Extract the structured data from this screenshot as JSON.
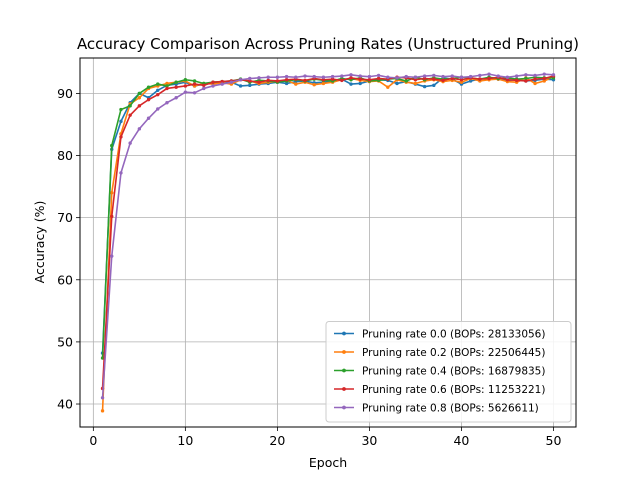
{
  "chart_data": {
    "type": "line",
    "title": "Accuracy Comparison Across Pruning Rates (Unstructured Pruning)",
    "xlabel": "Epoch",
    "ylabel": "Accuracy (%)",
    "xlim": [
      -1.45,
      52.45
    ],
    "ylim": [
      36.3,
      95.7
    ],
    "xticks": [
      0,
      10,
      20,
      30,
      40,
      50
    ],
    "yticks": [
      40,
      50,
      60,
      70,
      80,
      90
    ],
    "grid": true,
    "legend_position": "lower-right",
    "x": [
      1,
      2,
      3,
      4,
      5,
      6,
      7,
      8,
      9,
      10,
      11,
      12,
      13,
      14,
      15,
      16,
      17,
      18,
      19,
      20,
      21,
      22,
      23,
      24,
      25,
      26,
      27,
      28,
      29,
      30,
      31,
      32,
      33,
      34,
      35,
      36,
      37,
      38,
      39,
      40,
      41,
      42,
      43,
      44,
      45,
      46,
      47,
      48,
      49,
      50
    ],
    "series": [
      {
        "name": "Pruning rate 0.0 (BOPs: 28133056)",
        "color": "#1f77b4",
        "values": [
          48.2,
          81.0,
          85.5,
          88.5,
          90.0,
          89.3,
          90.5,
          91.3,
          91.5,
          91.8,
          91.2,
          91.5,
          91.7,
          91.6,
          91.8,
          91.2,
          91.3,
          91.5,
          91.6,
          91.8,
          91.6,
          91.9,
          92.0,
          91.7,
          91.8,
          92.0,
          92.3,
          91.5,
          91.6,
          92.0,
          92.2,
          92.1,
          91.6,
          91.9,
          91.5,
          91.1,
          91.3,
          92.5,
          92.3,
          91.5,
          92.0,
          92.3,
          92.4,
          92.3,
          92.1,
          92.2,
          92.0,
          92.1,
          92.3,
          92.2
        ]
      },
      {
        "name": "Pruning rate 0.2 (BOPs: 22506445)",
        "color": "#ff7f0e",
        "values": [
          38.9,
          74.0,
          83.5,
          88.3,
          89.3,
          90.8,
          91.2,
          91.6,
          91.8,
          92.0,
          91.2,
          91.6,
          91.5,
          91.7,
          91.5,
          92.2,
          92.0,
          91.6,
          91.8,
          91.9,
          92.1,
          91.5,
          91.8,
          91.4,
          91.6,
          91.8,
          92.2,
          92.4,
          92.1,
          91.9,
          92.0,
          91.0,
          92.2,
          91.8,
          91.6,
          92.0,
          92.2,
          91.9,
          92.1,
          91.8,
          92.4,
          92.0,
          92.2,
          92.3,
          91.9,
          91.8,
          92.5,
          91.6,
          92.0,
          92.7
        ]
      },
      {
        "name": "Pruning rate 0.4 (BOPs: 16879835)",
        "color": "#2ca02c",
        "values": [
          47.4,
          81.6,
          87.4,
          88.0,
          90.0,
          91.0,
          91.5,
          91.2,
          91.8,
          92.2,
          92.0,
          91.6,
          91.8,
          91.9,
          92.0,
          92.3,
          91.8,
          92.1,
          92.0,
          91.8,
          92.0,
          92.2,
          92.0,
          92.3,
          92.1,
          92.0,
          92.4,
          92.2,
          92.5,
          92.0,
          92.1,
          92.3,
          92.4,
          92.0,
          92.6,
          92.2,
          92.5,
          92.3,
          92.4,
          92.6,
          92.5,
          92.3,
          92.6,
          92.4,
          92.5,
          92.3,
          92.4,
          92.6,
          92.5,
          92.5
        ]
      },
      {
        "name": "Pruning rate 0.6 (BOPs: 11253221)",
        "color": "#d62728",
        "values": [
          42.5,
          70.2,
          83.0,
          86.5,
          88.0,
          89.0,
          89.8,
          90.8,
          91.0,
          91.2,
          91.5,
          91.3,
          91.8,
          91.9,
          92.0,
          92.2,
          92.0,
          91.8,
          92.1,
          92.0,
          92.2,
          92.3,
          92.1,
          92.4,
          92.2,
          92.3,
          92.1,
          92.5,
          92.3,
          92.2,
          92.4,
          92.3,
          92.6,
          92.5,
          92.2,
          92.4,
          92.3,
          92.1,
          92.4,
          92.2,
          92.5,
          92.3,
          92.4,
          92.6,
          92.2,
          92.1,
          92.0,
          92.3,
          92.4,
          92.8
        ]
      },
      {
        "name": "Pruning rate 0.8 (BOPs: 5626611)",
        "color": "#9467bd",
        "values": [
          41.0,
          63.8,
          77.2,
          82.0,
          84.3,
          86.0,
          87.5,
          88.5,
          89.3,
          90.2,
          90.1,
          90.8,
          91.2,
          91.5,
          91.8,
          92.2,
          92.4,
          92.5,
          92.6,
          92.6,
          92.7,
          92.6,
          92.8,
          92.7,
          92.6,
          92.7,
          92.8,
          93.0,
          92.8,
          92.7,
          92.9,
          92.6,
          92.5,
          92.7,
          92.6,
          92.8,
          92.9,
          92.7,
          92.8,
          92.6,
          92.7,
          92.9,
          93.1,
          92.8,
          92.6,
          92.8,
          93.0,
          92.9,
          93.1,
          93.0
        ]
      }
    ]
  }
}
